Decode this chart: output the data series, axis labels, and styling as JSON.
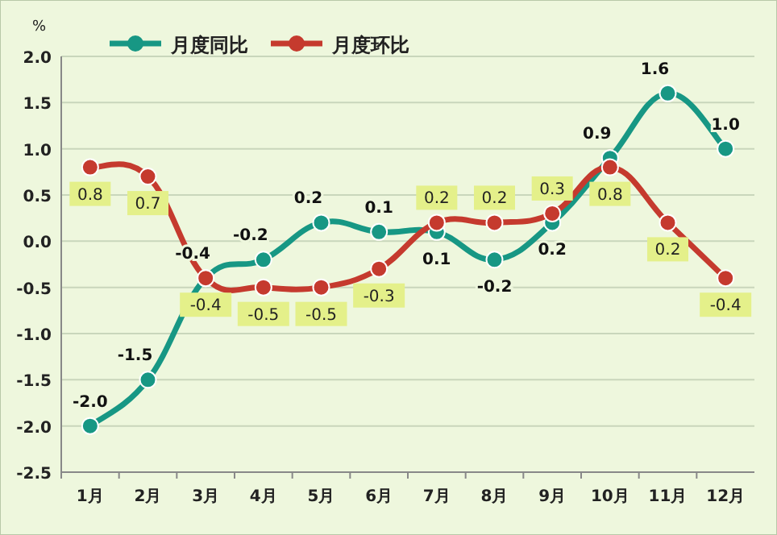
{
  "chart_data": {
    "type": "line",
    "ylabel": "%",
    "categories": [
      "1月",
      "2月",
      "3月",
      "4月",
      "5月",
      "6月",
      "7月",
      "8月",
      "9月",
      "10月",
      "11月",
      "12月"
    ],
    "series": [
      {
        "name": "月度同比",
        "color": "#179784",
        "values": [
          -2.0,
          -1.5,
          -0.4,
          -0.2,
          0.2,
          0.1,
          0.1,
          -0.2,
          0.2,
          0.9,
          1.6,
          1.0
        ],
        "value_labels": [
          "-2.0",
          "-1.5",
          "-0.4",
          "-0.2",
          "0.2",
          "0.1",
          "0.1",
          "-0.2",
          "0.2",
          "0.9",
          "1.6",
          "1.0"
        ]
      },
      {
        "name": "月度环比",
        "color": "#c53a2e",
        "values": [
          0.8,
          0.7,
          -0.4,
          -0.5,
          -0.5,
          -0.3,
          0.2,
          0.2,
          0.3,
          0.8,
          0.2,
          -0.4
        ],
        "value_labels": [
          "0.8",
          "0.7",
          "-0.4",
          "-0.5",
          "-0.5",
          "-0.3",
          "0.2",
          "0.2",
          "0.3",
          "0.8",
          "0.2",
          "-0.4"
        ]
      }
    ],
    "ylim": [
      -2.5,
      2.0
    ],
    "yticks": [
      {
        "value": -2.5,
        "label": "-2.5"
      },
      {
        "value": -2.0,
        "label": "-2.0"
      },
      {
        "value": -1.5,
        "label": "-1.5"
      },
      {
        "value": -1.0,
        "label": "-1.0"
      },
      {
        "value": -0.5,
        "label": "-0.5"
      },
      {
        "value": 0,
        "label": "0.0"
      },
      {
        "value": 0.5,
        "label": "0.5"
      },
      {
        "value": 1.0,
        "label": "1.0"
      },
      {
        "value": 1.5,
        "label": "1.5"
      },
      {
        "value": 2.0,
        "label": "2.0"
      }
    ],
    "grid": "y",
    "legend": "top",
    "marker": "circle",
    "line_style": "solid"
  }
}
